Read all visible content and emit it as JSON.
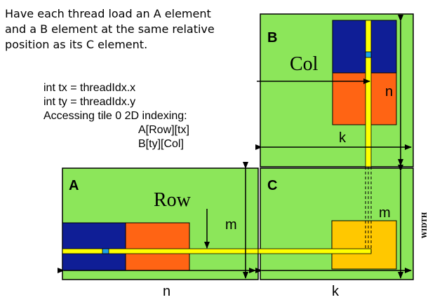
{
  "intro_text": "Have each thread load an A element\nand a B element at the same relative\nposition as its C element.",
  "code": {
    "line1": "int tx = threadIdx.x",
    "line2": "int ty = threadIdx.y",
    "line3": "Accessing tile 0 2D indexing:",
    "line4": "A[Row][tx]",
    "line5": "B[ty][Col]"
  },
  "matrices": {
    "a_label": "A",
    "b_label": "B",
    "c_label": "C"
  },
  "labels": {
    "col": "Col",
    "row": "Row",
    "n_b": "n",
    "k_b": "k",
    "m_a": "m",
    "n_a": "n",
    "m_c": "m",
    "k_c": "k",
    "width": "WIDTH"
  },
  "colors": {
    "matrix_fill": "#8ce65a",
    "tile_blue": "#0f1e96",
    "tile_orange": "#ff6414",
    "tile_c": "#ffc800",
    "strip_yellow": "#ffff00",
    "marker_cyan": "#1ea0e6"
  }
}
